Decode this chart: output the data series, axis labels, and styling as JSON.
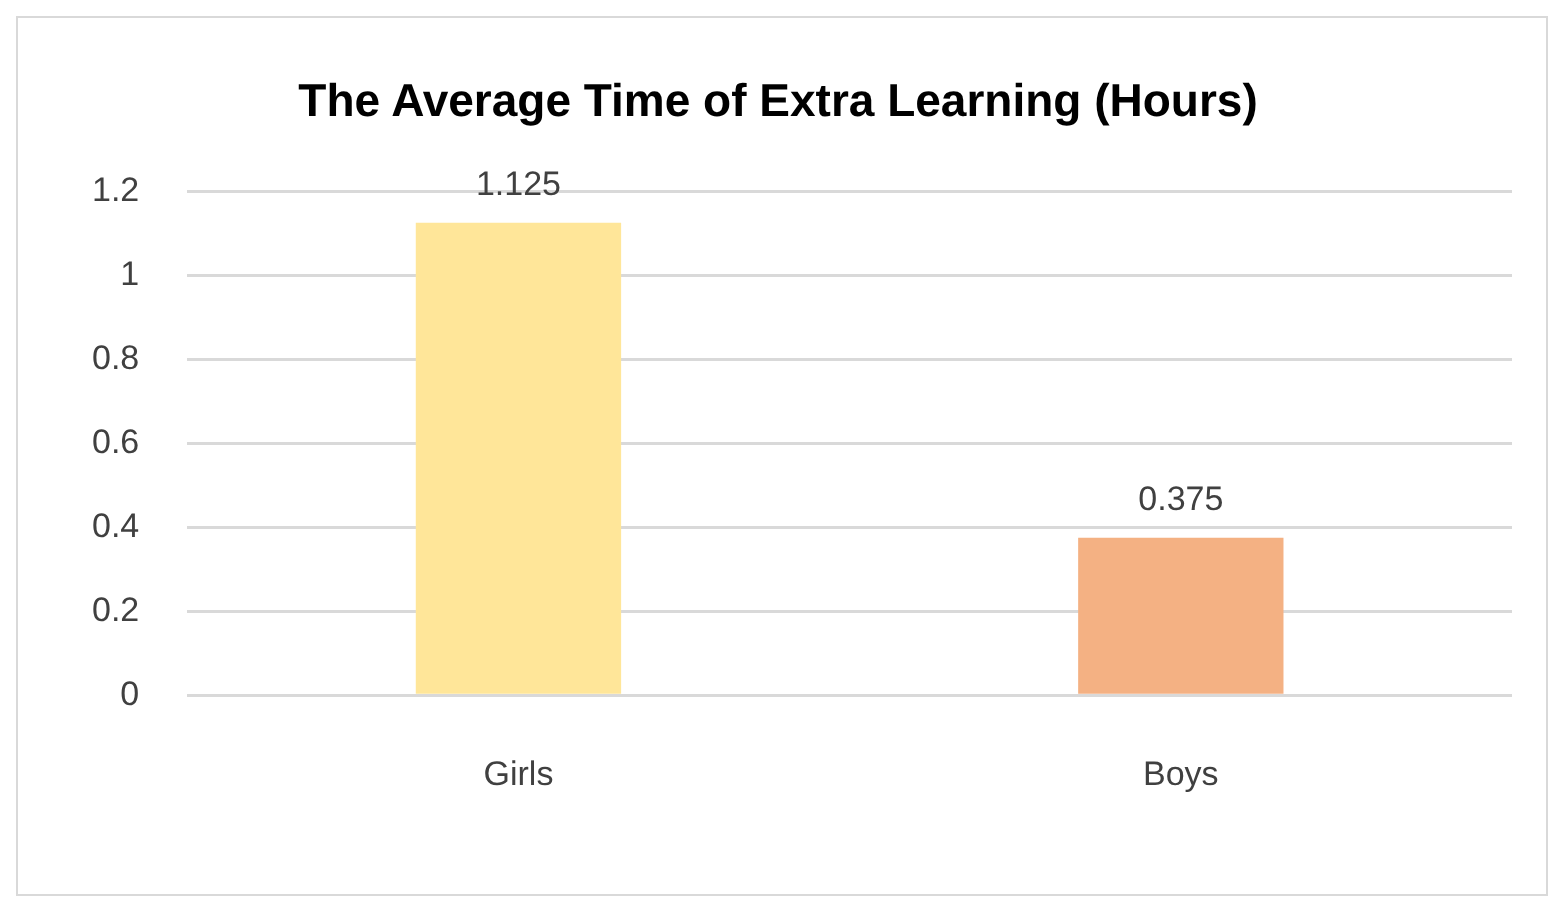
{
  "chart_data": {
    "type": "bar",
    "title": "The Average Time of Extra Learning (Hours)",
    "categories": [
      "Girls",
      "Boys"
    ],
    "values": [
      1.125,
      0.375
    ],
    "colors": [
      "#ffe699",
      "#f4b183"
    ],
    "ylim": [
      0,
      1.2
    ],
    "yticks": [
      0,
      0.2,
      0.4,
      0.6,
      0.8,
      1,
      1.2
    ],
    "grid": "y",
    "legend": false,
    "data_labels": true
  }
}
